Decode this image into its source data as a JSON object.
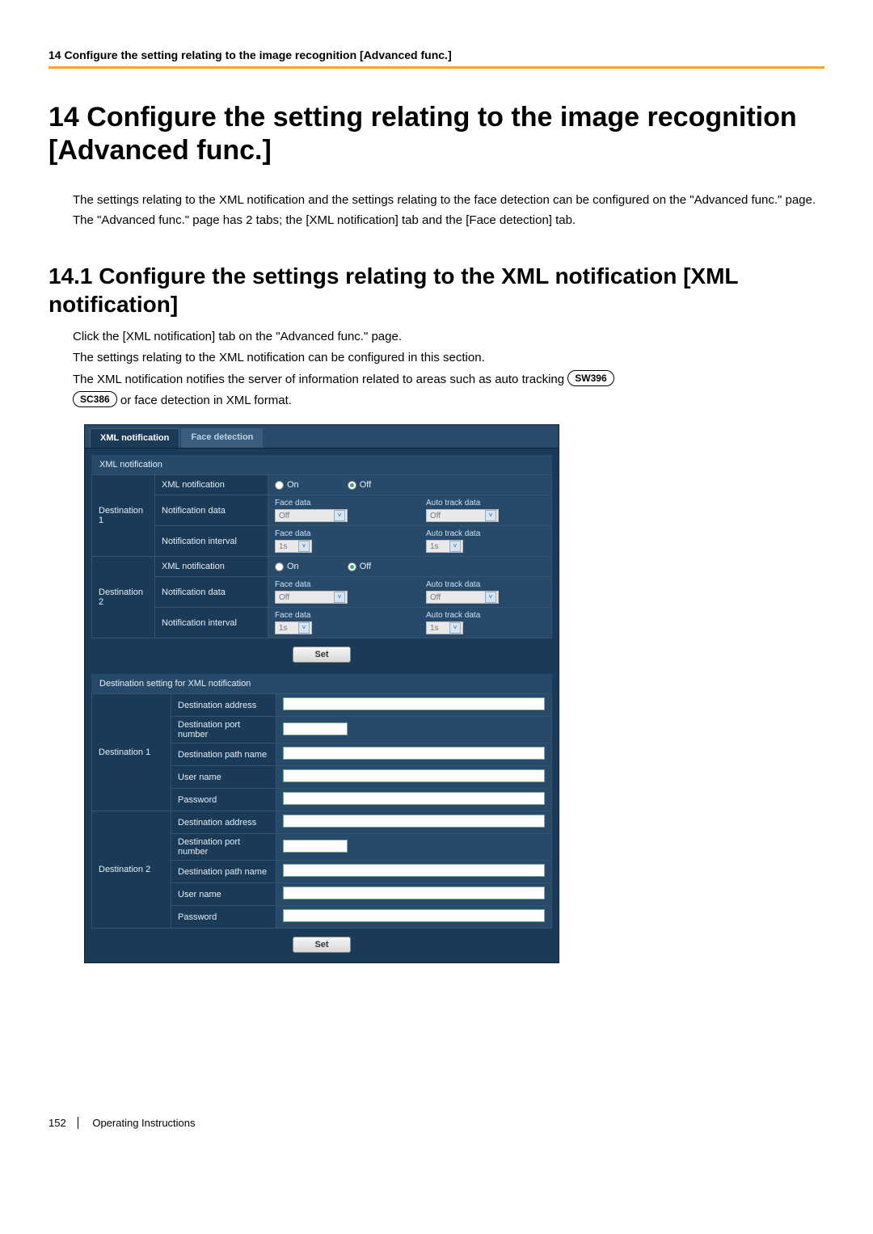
{
  "header": {
    "running": "14 Configure the setting relating to the image recognition [Advanced func.]",
    "rule_color": "#f5a623"
  },
  "h1": "14   Configure the setting relating to the image recognition [Advanced func.]",
  "intro_p1": "The settings relating to the XML notification and the settings relating to the face detection can be configured on the \"Advanced func.\" page.",
  "intro_p2": "The \"Advanced func.\" page has 2 tabs; the [XML notification] tab and the [Face detection] tab.",
  "h2": "14.1  Configure the settings relating to the XML notification [XML notification]",
  "sub_p1": "Click the [XML notification] tab on the \"Advanced func.\" page.",
  "sub_p2": "The settings relating to the XML notification can be configured in this section.",
  "sub_p3a": "The XML notification notifies the server of information related to areas such as auto tracking ",
  "sub_p3b": " or face detection in XML format.",
  "badges": {
    "sw396": "SW396",
    "sc386": "SC386"
  },
  "ui": {
    "tabs": {
      "active": "XML notification",
      "inactive": "Face detection"
    },
    "section1_title": "XML notification",
    "row_labels": {
      "xml_notification": "XML notification",
      "notification_data": "Notification data",
      "notification_interval": "Notification interval"
    },
    "dest1": "Destination 1",
    "dest2": "Destination 2",
    "radio": {
      "on": "On",
      "off": "Off",
      "selected": "off"
    },
    "column_labels": {
      "face": "Face data",
      "auto": "Auto track data"
    },
    "select_values": {
      "off": "Off",
      "interval": "1s"
    },
    "set_btn": "Set",
    "section2_title": "Destination setting for XML notification",
    "dest_fields": {
      "address": "Destination address",
      "port": "Destination port number",
      "path": "Destination path name",
      "user": "User name",
      "password": "Password"
    }
  },
  "footer": {
    "page": "152",
    "doc": "Operating Instructions"
  }
}
